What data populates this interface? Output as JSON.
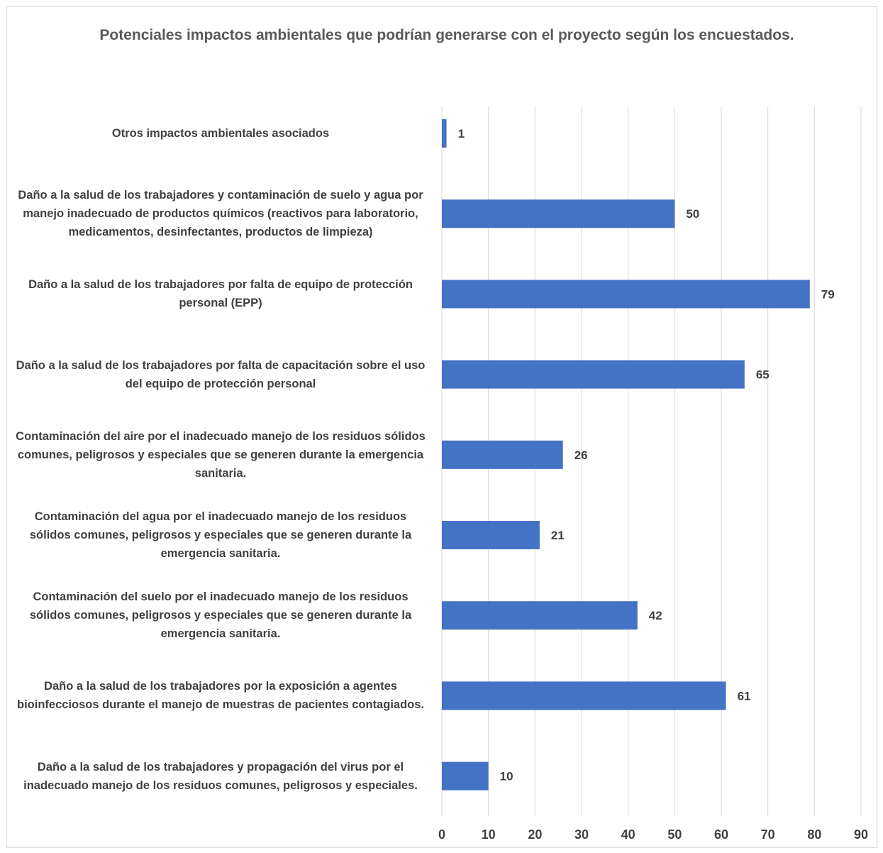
{
  "chart_data": {
    "type": "bar",
    "orientation": "horizontal",
    "title": "Potenciales impactos ambientales que podrían generarse con el proyecto según los encuestados.",
    "categories": [
      "Otros impactos ambientales asociados",
      "Daño a la salud de los trabajadores y contaminación de suelo y agua por manejo inadecuado de productos químicos (reactivos para laboratorio, medicamentos, desinfectantes, productos de limpieza)",
      "Daño a la salud de los trabajadores por falta de equipo de protección personal (EPP)",
      "Daño a la salud de los trabajadores por falta de capacitación sobre el uso del equipo de protección personal",
      "Contaminación del aire por el inadecuado manejo de los residuos sólidos comunes, peligrosos y especiales que se generen durante la emergencia sanitaria.",
      "Contaminación del agua por el inadecuado manejo de los residuos sólidos comunes, peligrosos y especiales que se generen durante la emergencia sanitaria.",
      "Contaminación del suelo por el inadecuado manejo de los residuos sólidos comunes, peligrosos y especiales que se generen durante la emergencia sanitaria.",
      "Daño a la salud de los trabajadores por la exposición a agentes bioinfecciosos durante el manejo de muestras de pacientes contagiados.",
      "Daño a la salud de los trabajadores y propagación del virus por el inadecuado manejo de los residuos comunes, peligrosos y especiales."
    ],
    "values": [
      1,
      50,
      79,
      65,
      26,
      21,
      42,
      61,
      10
    ],
    "xlim": [
      0,
      90
    ],
    "xticks": [
      0,
      10,
      20,
      30,
      40,
      50,
      60,
      70,
      80,
      90
    ],
    "grid": "vertical",
    "legend": "none",
    "data_labels": true,
    "bar_color": "#4472c4",
    "grid_color": "#d9d9d9",
    "label_color": "#404040"
  }
}
